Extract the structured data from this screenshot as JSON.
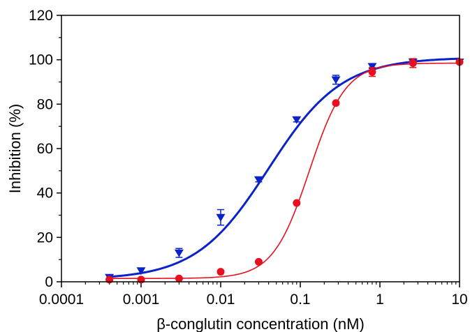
{
  "chart_data": {
    "type": "scatter",
    "title": "",
    "xlabel": "β-conglutin concentration (nM)",
    "ylabel": "Inhibition (%)",
    "x_scale": "log",
    "xlim": [
      0.0001,
      10
    ],
    "ylim": [
      0,
      120
    ],
    "x_ticks": [
      0.0001,
      0.001,
      0.01,
      0.1,
      1,
      10
    ],
    "x_tick_labels": [
      "0.0001",
      "0.001",
      "0.01",
      "0.1",
      "1",
      "10"
    ],
    "y_ticks": [
      0,
      20,
      40,
      60,
      80,
      100,
      120
    ],
    "y_tick_labels": [
      "0",
      "20",
      "40",
      "60",
      "80",
      "100",
      "120"
    ],
    "grid": false,
    "legend": "none",
    "series": [
      {
        "marker": "triangle-down",
        "color": "#0b22c9",
        "x": [
          0.0004,
          0.001,
          0.003,
          0.01,
          0.03,
          0.09,
          0.28,
          0.8,
          2.6,
          10
        ],
        "y": [
          2,
          5,
          13,
          29,
          46,
          73,
          91,
          97,
          99,
          99
        ],
        "error": [
          0,
          0,
          2,
          3.5,
          1,
          1,
          2,
          1,
          1,
          0.5
        ],
        "fit": {
          "bottom": 1,
          "top": 101,
          "ec50": 0.04,
          "hill": 0.95
        }
      },
      {
        "marker": "circle",
        "color": "#e8101e",
        "x": [
          0.0004,
          0.001,
          0.003,
          0.01,
          0.03,
          0.09,
          0.28,
          0.8,
          2.6,
          10
        ],
        "y": [
          1,
          1,
          1.5,
          4.5,
          9,
          35.5,
          80.5,
          94.5,
          98.5,
          99
        ],
        "error": [
          0,
          0,
          0,
          0,
          0,
          0,
          0,
          2,
          2,
          0
        ],
        "fit": {
          "bottom": 1.5,
          "top": 98.5,
          "ec50": 0.13,
          "hill": 1.9
        }
      }
    ]
  }
}
